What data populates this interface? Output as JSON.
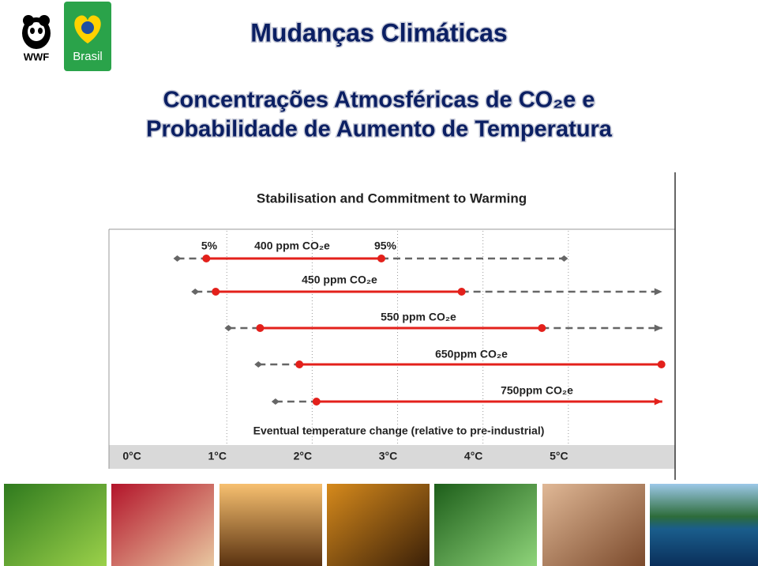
{
  "header": {
    "brand": "WWF",
    "country": "Brasil",
    "title": "Mudanças Climáticas",
    "subtitle_line1": "Concentrações Atmosféricas de CO₂e e",
    "subtitle_line2": "Probabilidade de Aumento de Temperatura"
  },
  "chart_data": {
    "type": "range",
    "title": "Stabilisation and Commitment to Warming",
    "x_label": "Eventual temperature change (relative to pre-industrial)",
    "low_label": "5%",
    "high_label": "95%",
    "xlim": [
      -0.38,
      6.25
    ],
    "xticks": [
      {
        "value": 0,
        "label": "0°C"
      },
      {
        "value": 1,
        "label": "1°C"
      },
      {
        "value": 2,
        "label": "2°C"
      },
      {
        "value": 3,
        "label": "3°C"
      },
      {
        "value": 4,
        "label": "4°C"
      },
      {
        "value": 5,
        "label": "5°C"
      }
    ],
    "grid": true,
    "color": "#e3201b",
    "extent_color": "#666666",
    "series": [
      {
        "name": "400 ppm CO₂e",
        "values": [
          0.42,
          0.76,
          2.81,
          4.95
        ],
        "arrow": false
      },
      {
        "name": "450 ppm CO₂e",
        "values": [
          0.63,
          0.87,
          3.75,
          6.1
        ],
        "arrow": true
      },
      {
        "name": "550 ppm CO₂e",
        "values": [
          1.02,
          1.39,
          4.69,
          6.1
        ],
        "arrow": true
      },
      {
        "name": "650ppm CO₂e",
        "values": [
          1.37,
          1.85,
          6.09,
          null
        ],
        "arrow": false
      },
      {
        "name": "750ppm CO₂e",
        "values": [
          1.57,
          2.05,
          6.1,
          null
        ],
        "arrow": true
      }
    ]
  }
}
